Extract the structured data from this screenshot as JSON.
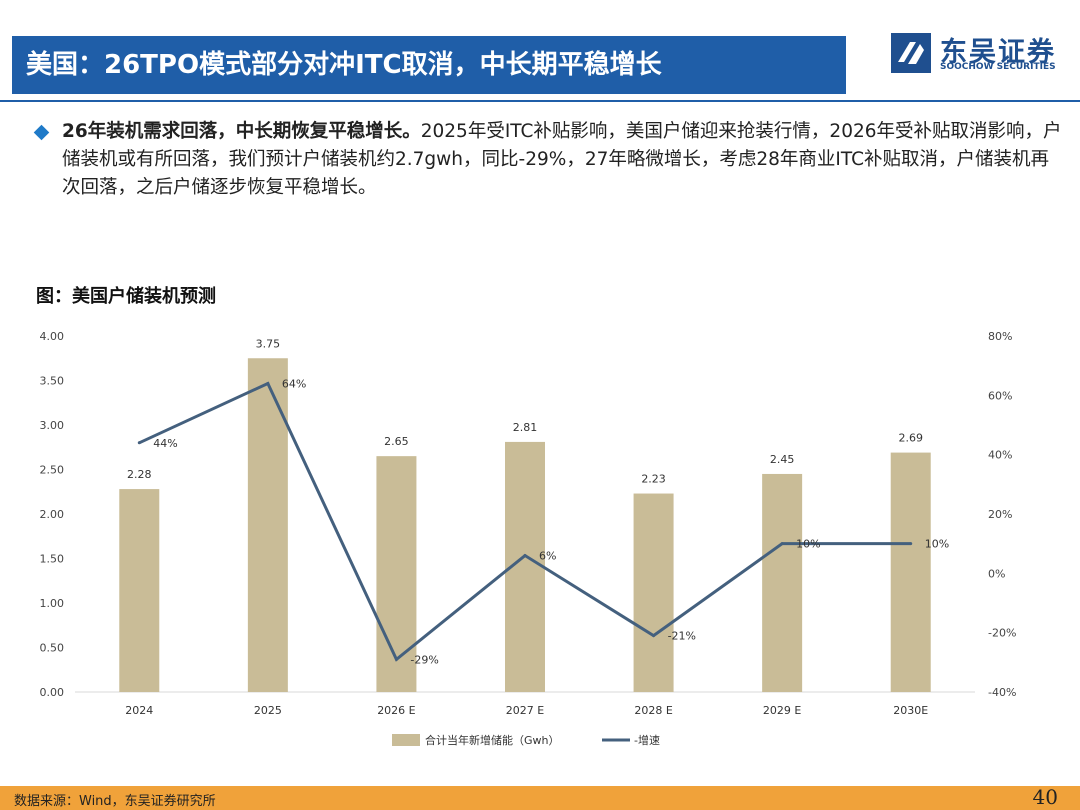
{
  "header": {
    "title": "美国：26TPO模式部分对冲ITC取消，中长期平稳增长",
    "logo_cn": "东吴证券",
    "logo_en": "SOOCHOW SECURITIES"
  },
  "body": {
    "lead": "26年装机需求回落，中长期恢复平稳增长。",
    "text": "2025年受ITC补贴影响，美国户储迎来抢装行情，2026年受补贴取消影响，户储装机或有所回落，我们预计户储装机约2.7gwh，同比-29%，27年略微增长，考虑28年商业ITC补贴取消，户储装机再次回落，之后户储逐步恢复平稳增长。"
  },
  "figure": {
    "title": "图：美国户储装机预测"
  },
  "chart_data": {
    "type": "bar",
    "categories": [
      "2024",
      "2025",
      "2026 E",
      "2027 E",
      "2028 E",
      "2029 E",
      "2030E"
    ],
    "series": [
      {
        "name": "合计当年新增储能（Gwh）",
        "type": "bar",
        "axis": "left",
        "values": [
          2.28,
          3.75,
          2.65,
          2.81,
          2.23,
          2.45,
          2.69
        ],
        "labels": [
          "2.28",
          "3.75",
          "2.65",
          "2.81",
          "2.23",
          "2.45",
          "2.69"
        ]
      },
      {
        "name": "-增速",
        "type": "line",
        "axis": "right",
        "values": [
          44,
          64,
          -29,
          6,
          -21,
          10,
          10
        ],
        "labels": [
          "44%",
          "64%",
          "-29%",
          "6%",
          "-21%",
          "10%",
          "10%"
        ]
      }
    ],
    "y_left": {
      "min": 0,
      "max": 4,
      "ticks": [
        "0.00",
        "0.50",
        "1.00",
        "1.50",
        "2.00",
        "2.50",
        "3.00",
        "3.50",
        "4.00"
      ]
    },
    "y_right": {
      "min": -40,
      "max": 80,
      "ticks": [
        "-40%",
        "-20%",
        "0%",
        "20%",
        "40%",
        "60%",
        "80%"
      ]
    },
    "colors": {
      "bar": "#c9bc97",
      "line": "#44607e"
    },
    "grid": false,
    "legend_position": "bottom"
  },
  "footer": {
    "source": "数据来源：Wind，东吴证券研究所",
    "page": "40"
  }
}
